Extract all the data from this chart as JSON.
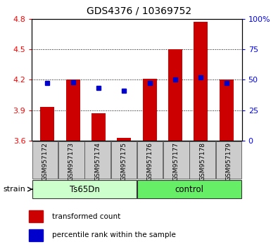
{
  "title": "GDS4376 / 10369752",
  "samples": [
    "GSM957172",
    "GSM957173",
    "GSM957174",
    "GSM957175",
    "GSM957176",
    "GSM957177",
    "GSM957178",
    "GSM957179"
  ],
  "red_values": [
    3.93,
    4.2,
    3.87,
    3.63,
    4.21,
    4.5,
    4.77,
    4.2
  ],
  "blue_values": [
    47,
    48,
    43,
    41,
    47,
    50,
    52,
    47
  ],
  "ylim_left": [
    3.6,
    4.8
  ],
  "ylim_right": [
    0,
    100
  ],
  "yticks_left": [
    3.6,
    3.9,
    4.2,
    4.5,
    4.8
  ],
  "yticks_right": [
    0,
    25,
    50,
    75,
    100
  ],
  "ytick_labels_right": [
    "0",
    "25",
    "50",
    "75",
    "100%"
  ],
  "bar_color": "#cc0000",
  "dot_color": "#0000cc",
  "bar_width": 0.55,
  "baseline": 3.6,
  "legend_red": "transformed count",
  "legend_blue": "percentile rank within the sample",
  "ts65dn_color": "#ccffcc",
  "control_color": "#66ee66",
  "xtick_bg": "#cccccc",
  "title_fontsize": 10,
  "tick_fontsize": 8,
  "sample_fontsize": 6.5,
  "group_fontsize": 8.5,
  "legend_fontsize": 7.5,
  "strain_fontsize": 8
}
